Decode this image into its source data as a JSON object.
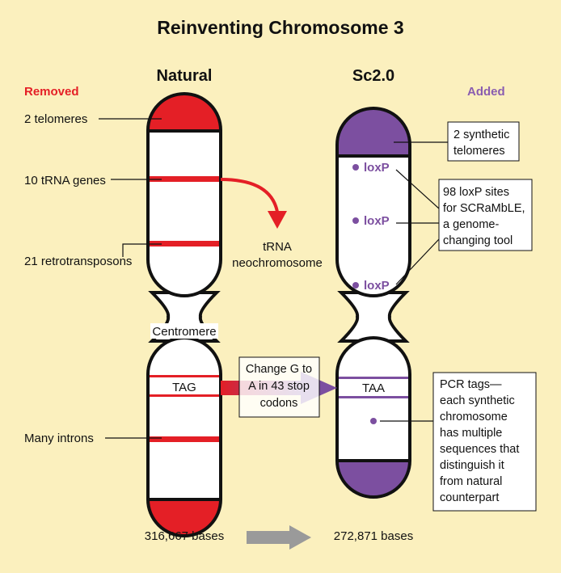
{
  "title": "Reinventing Chromosome 3",
  "natural": {
    "heading": "Natural",
    "removed_label": "Removed",
    "telomeres": "2 telomeres",
    "trna_genes": "10 tRNA genes",
    "retrotransposons": "21 retrotransposons",
    "centromere": "Centromere",
    "stop_codon": "TAG",
    "introns": "Many introns",
    "size": "316,667 bases"
  },
  "sc20": {
    "heading": "Sc2.0",
    "added_label": "Added",
    "telomeres_box": [
      "2 synthetic",
      "telomeres"
    ],
    "loxp_marker": "loxP",
    "loxp_box": [
      "98 loxP sites",
      "for SCRaMbLE,",
      "a genome-",
      "changing tool"
    ],
    "stop_codon": "TAA",
    "pcr_box": [
      "PCR tags—",
      "each synthetic",
      "chromosome",
      "has multiple",
      "sequences that",
      "distinguish it",
      "from natural",
      "counterpart"
    ],
    "size": "272,871 bases"
  },
  "trna_destination": [
    "tRNA",
    "neochromosome"
  ],
  "codon_change": [
    "Change G to",
    "A in 43 stop",
    "codons"
  ],
  "colors": {
    "background": "#fbf0be",
    "natural_red": "#e41f26",
    "synthetic_purple": "#7c4fa0",
    "removed_label": "#e41f26",
    "added_label": "#8a5db0",
    "gray_arrow": "#9a9a9a"
  }
}
